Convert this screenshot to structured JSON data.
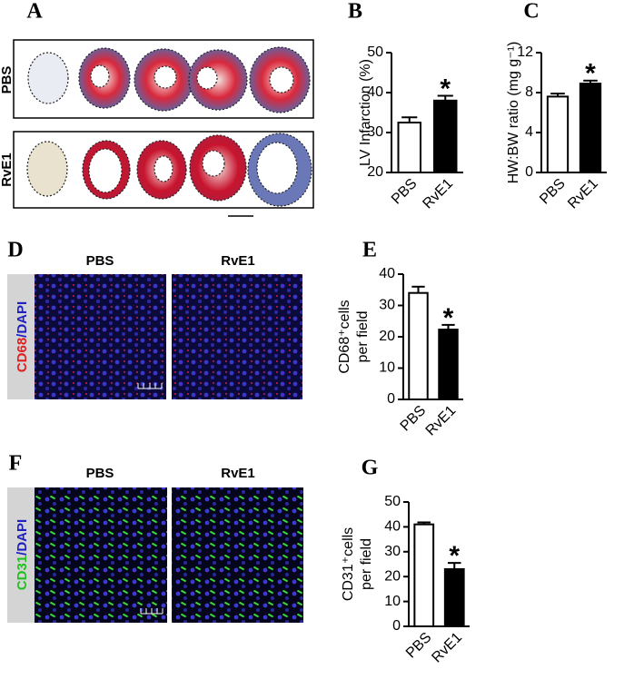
{
  "figure": {
    "panel_a": {
      "letter": "A",
      "rows": [
        "PBS",
        "RvE1"
      ]
    },
    "panel_d": {
      "letter": "D",
      "columns": [
        "PBS",
        "RvE1"
      ],
      "stain": [
        "CD68",
        "/DAPI"
      ]
    },
    "panel_f": {
      "letter": "F",
      "columns": [
        "PBS",
        "RvE1"
      ],
      "stain": [
        "CD31",
        "/DAPI"
      ]
    }
  },
  "chart_data": [
    {
      "type": "bar",
      "panel": "B",
      "ylabel": [
        "LV Infarction (%)"
      ],
      "categories": [
        "PBS",
        "RvE1"
      ],
      "values": [
        32.5,
        38
      ],
      "errors": [
        1.3,
        1.2
      ],
      "colors": [
        "#ffffff",
        "#000000"
      ],
      "ylim": [
        20,
        50
      ],
      "yticks": [
        20,
        30,
        40,
        50
      ],
      "annotation": "*"
    },
    {
      "type": "bar",
      "panel": "C",
      "ylabel": [
        "HW:BW ratio (mg g⁻¹)"
      ],
      "categories": [
        "PBS",
        "RvE1"
      ],
      "values": [
        7.6,
        8.9
      ],
      "errors": [
        0.3,
        0.3
      ],
      "colors": [
        "#ffffff",
        "#000000"
      ],
      "ylim": [
        0,
        12
      ],
      "yticks": [
        0,
        4,
        8,
        12
      ],
      "annotation": "*"
    },
    {
      "type": "bar",
      "panel": "E",
      "ylabel": [
        "CD68⁺cells",
        "per field"
      ],
      "categories": [
        "PBS",
        "RvE1"
      ],
      "values": [
        34,
        22.3
      ],
      "errors": [
        2,
        1.5
      ],
      "colors": [
        "#ffffff",
        "#000000"
      ],
      "ylim": [
        0,
        40
      ],
      "yticks": [
        0,
        10,
        20,
        30,
        40
      ],
      "annotation": "*"
    },
    {
      "type": "bar",
      "panel": "G",
      "ylabel": [
        "CD31⁺cells",
        "per field"
      ],
      "categories": [
        "PBS",
        "RvE1"
      ],
      "values": [
        41,
        23
      ],
      "errors": [
        0.8,
        2.5
      ],
      "colors": [
        "#ffffff",
        "#000000"
      ],
      "ylim": [
        0,
        50
      ],
      "yticks": [
        0,
        10,
        20,
        30,
        40,
        50
      ],
      "annotation": "*"
    }
  ]
}
